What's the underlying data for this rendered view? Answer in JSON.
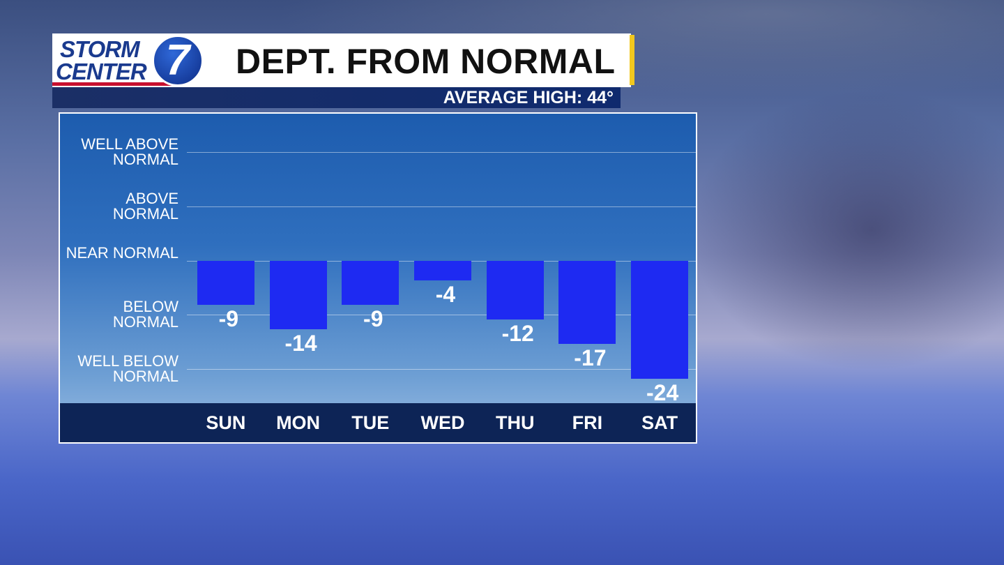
{
  "logo": {
    "line1": "STORM",
    "line2": "CENTER",
    "number": "7"
  },
  "chart_data": {
    "type": "bar",
    "title": "DEPT. FROM NORMAL",
    "subtitle": "AVERAGE HIGH: 44°",
    "categories": [
      "SUN",
      "MON",
      "TUE",
      "WED",
      "THU",
      "FRI",
      "SAT"
    ],
    "values": [
      -9,
      -14,
      -9,
      -4,
      -12,
      -17,
      -24
    ],
    "color": "#1e2af2",
    "ylim": [
      -29,
      30
    ],
    "yticks": [
      {
        "value": -22,
        "label": "WELL BELOW NORMAL"
      },
      {
        "value": -11,
        "label": "BELOW NORMAL"
      },
      {
        "value": 0,
        "label": "NEAR NORMAL"
      },
      {
        "value": 11,
        "label": "ABOVE NORMAL"
      },
      {
        "value": 22,
        "label": "WELL ABOVE NORMAL"
      }
    ],
    "grid": true
  }
}
